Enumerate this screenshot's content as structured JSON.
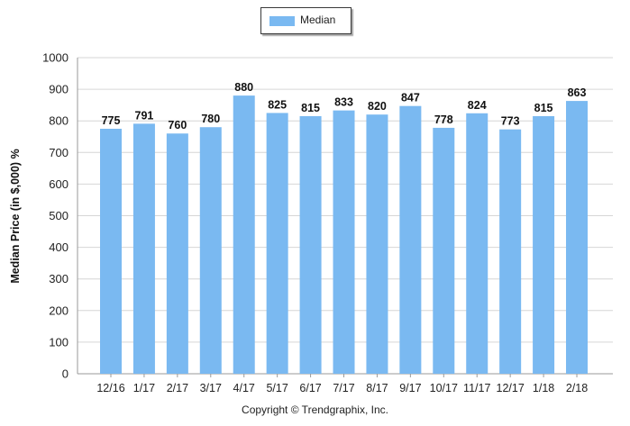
{
  "chart_data": {
    "type": "bar",
    "categories": [
      "12/16",
      "1/17",
      "2/17",
      "3/17",
      "4/17",
      "5/17",
      "6/17",
      "7/17",
      "8/17",
      "9/17",
      "10/17",
      "11/17",
      "12/17",
      "1/18",
      "2/18"
    ],
    "series": [
      {
        "name": "Median",
        "values": [
          775,
          791,
          760,
          780,
          880,
          825,
          815,
          833,
          820,
          847,
          778,
          824,
          773,
          815,
          863
        ],
        "color": "#7ab9f1"
      }
    ],
    "ylabel": "Median Price (in $,000) %",
    "xlabel": "",
    "ylim": [
      0,
      1000
    ],
    "yticks": [
      0,
      100,
      200,
      300,
      400,
      500,
      600,
      700,
      800,
      900,
      1000
    ],
    "grid": true,
    "legend_position": "top-center",
    "data_labels": true
  },
  "footer": {
    "copyright": "Copyright © Trendgraphix, Inc."
  }
}
